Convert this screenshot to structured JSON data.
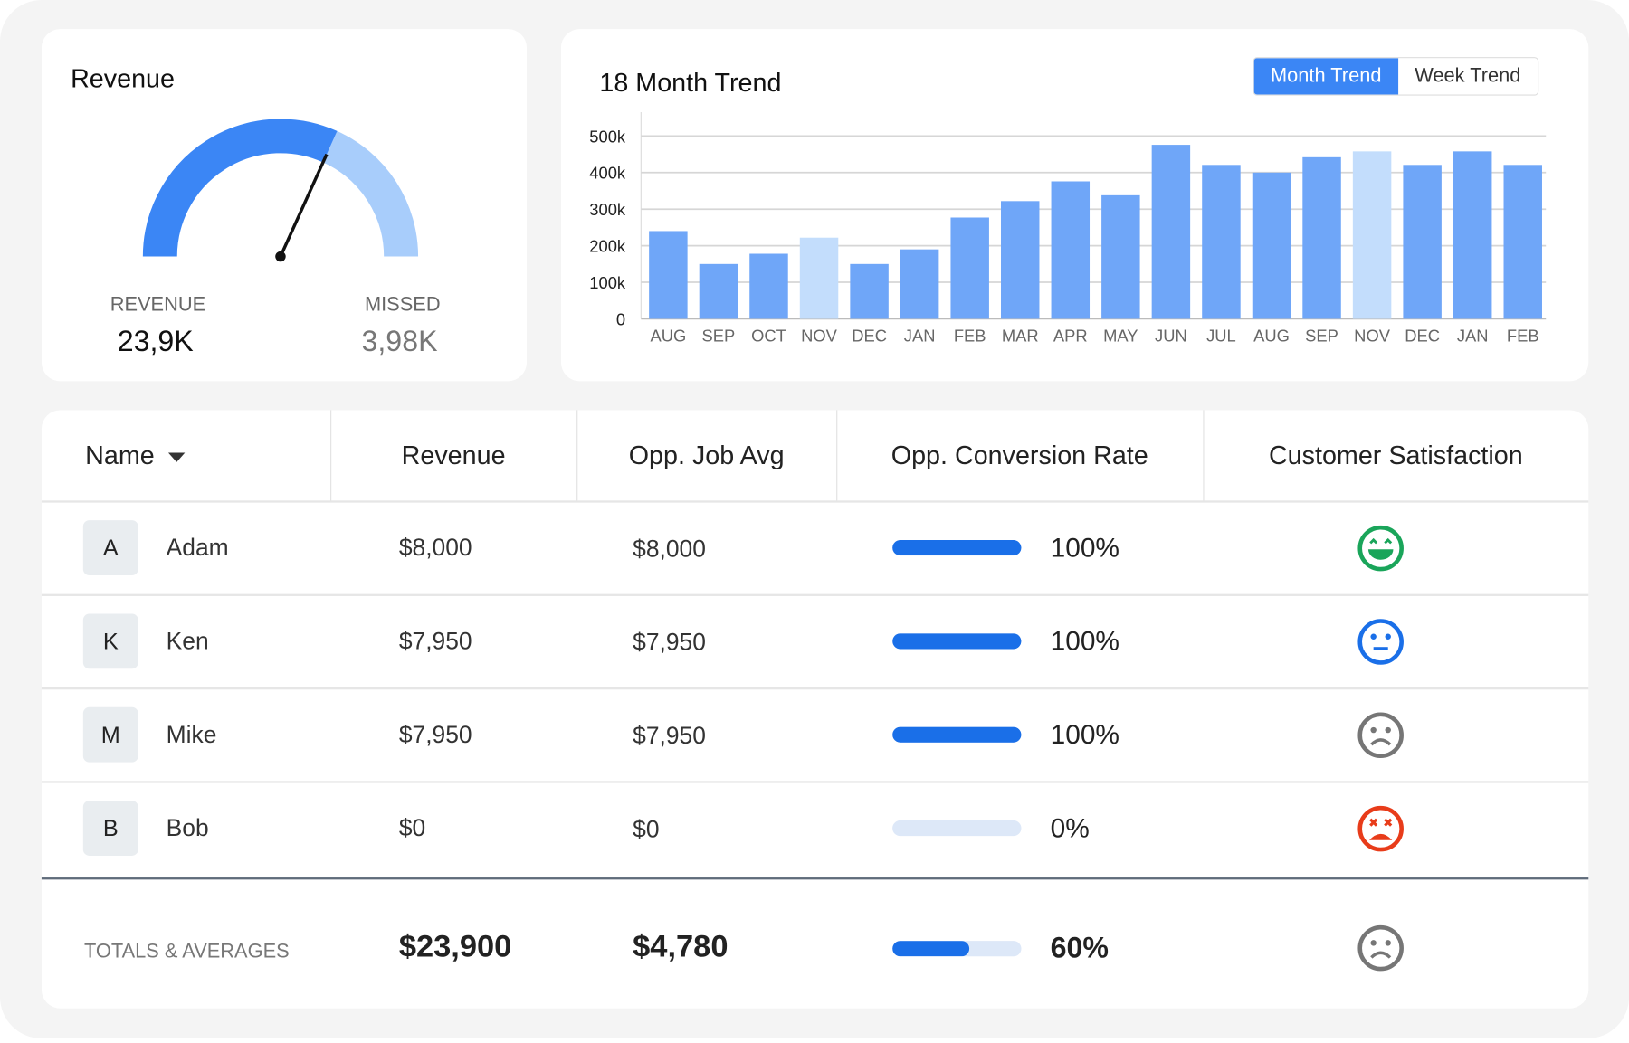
{
  "revenue_card": {
    "title": "Revenue",
    "gauge_fraction": 0.635,
    "revenue_label": "REVENUE",
    "revenue_value": "23,9K",
    "missed_label": "MISSED",
    "missed_value": "3,98K",
    "colors": {
      "revenue": "#3b86f5",
      "missed": "#a8cdfb"
    }
  },
  "trend_card": {
    "title": "18 Month Trend",
    "toggle": {
      "month": "Month Trend",
      "week": "Week Trend",
      "active": "month"
    }
  },
  "chart_data": {
    "type": "bar",
    "title": "18 Month Trend",
    "categories": [
      "AUG",
      "SEP",
      "OCT",
      "NOV",
      "DEC",
      "JAN",
      "FEB",
      "MAR",
      "APR",
      "MAY",
      "JUN",
      "JUL",
      "AUG",
      "SEP",
      "NOV",
      "DEC",
      "JAN",
      "FEB"
    ],
    "values": [
      240000,
      150000,
      178000,
      222000,
      150000,
      190000,
      277000,
      322000,
      376000,
      338000,
      476000,
      421000,
      400000,
      442000,
      458000,
      421000,
      458000,
      421000
    ],
    "highlighted": [
      3,
      14
    ],
    "ylim": [
      0,
      500000
    ],
    "yticks": [
      "0",
      "100k",
      "200k",
      "300k",
      "400k",
      "500k"
    ],
    "grid": true,
    "colors": {
      "bar": "#6fa6f8",
      "highlight": "#c3ddfc"
    }
  },
  "table": {
    "headers": {
      "name": "Name",
      "revenue": "Revenue",
      "job_avg": "Opp. Job Avg",
      "conversion": "Opp. Conversion Rate",
      "satisfaction": "Customer Satisfaction"
    },
    "rows": [
      {
        "initial": "A",
        "name": "Adam",
        "revenue": "$8,000",
        "job_avg": "$8,000",
        "conversion": "100%",
        "conversion_value": 100,
        "satisfaction": "very-happy"
      },
      {
        "initial": "K",
        "name": "Ken",
        "revenue": "$7,950",
        "job_avg": "$7,950",
        "conversion": "100%",
        "conversion_value": 100,
        "satisfaction": "neutral"
      },
      {
        "initial": "M",
        "name": "Mike",
        "revenue": "$7,950",
        "job_avg": "$7,950",
        "conversion": "100%",
        "conversion_value": 100,
        "satisfaction": "sad"
      },
      {
        "initial": "B",
        "name": "Bob",
        "revenue": "$0",
        "job_avg": "$0",
        "conversion": "0%",
        "conversion_value": 0,
        "satisfaction": "very-unhappy"
      }
    ],
    "totals": {
      "label": "TOTALS & AVERAGES",
      "revenue": "$23,900",
      "job_avg": "$4,780",
      "conversion": "60%",
      "conversion_value": 60,
      "satisfaction": "sad"
    },
    "satisfaction_colors": {
      "very-happy": "#1aa55a",
      "neutral": "#1a6fe8",
      "sad": "#767676",
      "very-unhappy": "#e83c1a"
    }
  }
}
